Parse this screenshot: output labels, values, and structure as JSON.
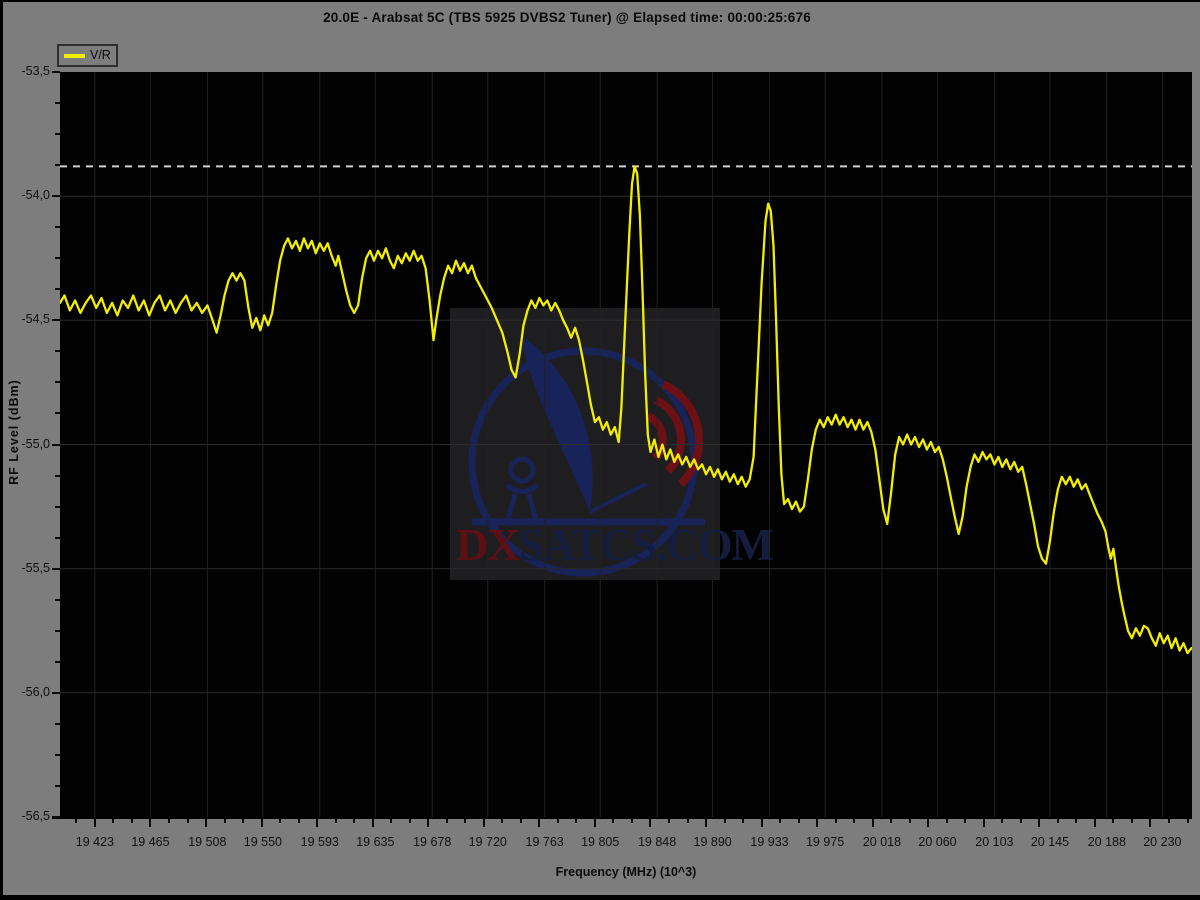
{
  "window": {
    "title": "20.0E - Arabsat 5C (TBS 5925 DVBS2 Tuner) @ Elapsed time: 00:00:25:676"
  },
  "legend": {
    "series_label": "V/R"
  },
  "axes": {
    "x_title": "Frequency (MHz) (10^3)",
    "y_title": "RF Level (dBm)"
  },
  "watermark": {
    "text_red": "DX",
    "text_navy": "SATCS.COM"
  },
  "colors": {
    "page_bg": "#7d7d7d",
    "plot_bg": "#020202",
    "trace": "#f2ee00",
    "reference_line": "#d2d2d2",
    "grid_vertical": "#212121",
    "grid_horizontal": "#2b2b2b",
    "watermark_patch": "#1e1e21",
    "watermark_navy": "#18235a",
    "watermark_red": "#6d1015",
    "watermark_text_red": "#5c1013",
    "watermark_text_navy": "#141d3e",
    "tick_color": "#0a0a0a"
  },
  "chart_data": {
    "type": "line",
    "title": "20.0E - Arabsat 5C (TBS 5925 DVBS2 Tuner) @ Elapsed time: 00:00:25:676",
    "xlabel": "Frequency (MHz) (10^3)",
    "ylabel": "RF Level (dBm)",
    "x_ticks": [
      "19 423",
      "19 465",
      "19 508",
      "19 550",
      "19 593",
      "19 635",
      "19 678",
      "19 720",
      "19 763",
      "19 805",
      "19 848",
      "19 890",
      "19 933",
      "19 975",
      "20 018",
      "20 060",
      "20 103",
      "20 145",
      "20 188",
      "20 230"
    ],
    "y_ticks": [
      "-53,5",
      "-54,0",
      "-54,5",
      "-55,0",
      "-55,5",
      "-56,0",
      "-56,5"
    ],
    "x_range": [
      19396.6,
      20252.4
    ],
    "y_range": [
      -56.5,
      -53.5
    ],
    "grid": true,
    "legend_position": "top-left",
    "reference_line_dBm": -53.88,
    "series": [
      {
        "name": "V/R",
        "color": "#f2ee00",
        "points": [
          [
            19396,
            -54.43
          ],
          [
            19400,
            -54.4
          ],
          [
            19404,
            -54.46
          ],
          [
            19408,
            -54.42
          ],
          [
            19412,
            -54.47
          ],
          [
            19416,
            -54.43
          ],
          [
            19420,
            -54.4
          ],
          [
            19424,
            -54.45
          ],
          [
            19428,
            -54.41
          ],
          [
            19432,
            -54.47
          ],
          [
            19436,
            -54.43
          ],
          [
            19440,
            -54.48
          ],
          [
            19444,
            -54.42
          ],
          [
            19448,
            -54.45
          ],
          [
            19452,
            -54.4
          ],
          [
            19456,
            -54.46
          ],
          [
            19460,
            -54.42
          ],
          [
            19464,
            -54.48
          ],
          [
            19468,
            -54.43
          ],
          [
            19472,
            -54.4
          ],
          [
            19476,
            -54.46
          ],
          [
            19480,
            -54.42
          ],
          [
            19484,
            -54.47
          ],
          [
            19488,
            -54.43
          ],
          [
            19492,
            -54.4
          ],
          [
            19496,
            -54.46
          ],
          [
            19500,
            -54.43
          ],
          [
            19504,
            -54.47
          ],
          [
            19508,
            -54.44
          ],
          [
            19512,
            -54.5
          ],
          [
            19515,
            -54.55
          ],
          [
            19518,
            -54.48
          ],
          [
            19521,
            -54.4
          ],
          [
            19524,
            -54.34
          ],
          [
            19527,
            -54.31
          ],
          [
            19530,
            -54.34
          ],
          [
            19533,
            -54.31
          ],
          [
            19536,
            -54.34
          ],
          [
            19539,
            -54.45
          ],
          [
            19542,
            -54.53
          ],
          [
            19545,
            -54.49
          ],
          [
            19548,
            -54.54
          ],
          [
            19551,
            -54.48
          ],
          [
            19554,
            -54.52
          ],
          [
            19557,
            -54.47
          ],
          [
            19560,
            -54.36
          ],
          [
            19563,
            -54.26
          ],
          [
            19566,
            -54.2
          ],
          [
            19569,
            -54.17
          ],
          [
            19572,
            -54.21
          ],
          [
            19575,
            -54.18
          ],
          [
            19578,
            -54.22
          ],
          [
            19581,
            -54.17
          ],
          [
            19584,
            -54.21
          ],
          [
            19587,
            -54.18
          ],
          [
            19590,
            -54.23
          ],
          [
            19593,
            -54.19
          ],
          [
            19596,
            -54.22
          ],
          [
            19599,
            -54.19
          ],
          [
            19602,
            -54.24
          ],
          [
            19605,
            -54.28
          ],
          [
            19607,
            -54.24
          ],
          [
            19610,
            -54.31
          ],
          [
            19613,
            -54.38
          ],
          [
            19616,
            -54.44
          ],
          [
            19619,
            -54.47
          ],
          [
            19622,
            -54.44
          ],
          [
            19625,
            -54.33
          ],
          [
            19628,
            -54.25
          ],
          [
            19631,
            -54.22
          ],
          [
            19634,
            -54.26
          ],
          [
            19637,
            -54.22
          ],
          [
            19640,
            -54.25
          ],
          [
            19643,
            -54.21
          ],
          [
            19646,
            -54.26
          ],
          [
            19649,
            -54.29
          ],
          [
            19652,
            -54.24
          ],
          [
            19655,
            -54.27
          ],
          [
            19658,
            -54.23
          ],
          [
            19661,
            -54.26
          ],
          [
            19664,
            -54.22
          ],
          [
            19667,
            -54.26
          ],
          [
            19670,
            -54.24
          ],
          [
            19673,
            -54.29
          ],
          [
            19676,
            -54.42
          ],
          [
            19679,
            -54.58
          ],
          [
            19681,
            -54.5
          ],
          [
            19684,
            -54.4
          ],
          [
            19687,
            -54.33
          ],
          [
            19690,
            -54.28
          ],
          [
            19693,
            -54.31
          ],
          [
            19696,
            -54.26
          ],
          [
            19699,
            -54.3
          ],
          [
            19702,
            -54.27
          ],
          [
            19705,
            -54.31
          ],
          [
            19708,
            -54.28
          ],
          [
            19711,
            -54.33
          ],
          [
            19715,
            -54.37
          ],
          [
            19719,
            -54.41
          ],
          [
            19723,
            -54.45
          ],
          [
            19727,
            -54.5
          ],
          [
            19731,
            -54.55
          ],
          [
            19735,
            -54.63
          ],
          [
            19738,
            -54.7
          ],
          [
            19741,
            -54.73
          ],
          [
            19744,
            -54.64
          ],
          [
            19747,
            -54.52
          ],
          [
            19750,
            -54.46
          ],
          [
            19753,
            -54.42
          ],
          [
            19756,
            -54.45
          ],
          [
            19759,
            -54.41
          ],
          [
            19762,
            -54.44
          ],
          [
            19765,
            -54.42
          ],
          [
            19768,
            -54.46
          ],
          [
            19771,
            -54.43
          ],
          [
            19774,
            -54.46
          ],
          [
            19777,
            -54.5
          ],
          [
            19780,
            -54.53
          ],
          [
            19783,
            -54.57
          ],
          [
            19786,
            -54.53
          ],
          [
            19789,
            -54.58
          ],
          [
            19792,
            -54.66
          ],
          [
            19795,
            -54.75
          ],
          [
            19798,
            -54.84
          ],
          [
            19801,
            -54.91
          ],
          [
            19804,
            -54.89
          ],
          [
            19807,
            -54.94
          ],
          [
            19810,
            -54.91
          ],
          [
            19813,
            -54.96
          ],
          [
            19816,
            -54.93
          ],
          [
            19819,
            -54.99
          ],
          [
            19821,
            -54.85
          ],
          [
            19824,
            -54.5
          ],
          [
            19827,
            -54.15
          ],
          [
            19829,
            -53.95
          ],
          [
            19831,
            -53.88
          ],
          [
            19833,
            -53.91
          ],
          [
            19835,
            -54.08
          ],
          [
            19837,
            -54.38
          ],
          [
            19839,
            -54.72
          ],
          [
            19841,
            -54.96
          ],
          [
            19843,
            -55.03
          ],
          [
            19846,
            -54.98
          ],
          [
            19849,
            -55.05
          ],
          [
            19852,
            -55.0
          ],
          [
            19855,
            -55.06
          ],
          [
            19858,
            -55.02
          ],
          [
            19861,
            -55.07
          ],
          [
            19864,
            -55.04
          ],
          [
            19867,
            -55.08
          ],
          [
            19870,
            -55.05
          ],
          [
            19873,
            -55.09
          ],
          [
            19876,
            -55.06
          ],
          [
            19879,
            -55.1
          ],
          [
            19882,
            -55.08
          ],
          [
            19885,
            -55.12
          ],
          [
            19888,
            -55.09
          ],
          [
            19891,
            -55.13
          ],
          [
            19894,
            -55.1
          ],
          [
            19897,
            -55.14
          ],
          [
            19900,
            -55.11
          ],
          [
            19903,
            -55.15
          ],
          [
            19906,
            -55.12
          ],
          [
            19909,
            -55.16
          ],
          [
            19912,
            -55.13
          ],
          [
            19915,
            -55.17
          ],
          [
            19918,
            -55.14
          ],
          [
            19921,
            -55.05
          ],
          [
            19924,
            -54.7
          ],
          [
            19927,
            -54.35
          ],
          [
            19930,
            -54.1
          ],
          [
            19932,
            -54.03
          ],
          [
            19934,
            -54.06
          ],
          [
            19936,
            -54.2
          ],
          [
            19938,
            -54.5
          ],
          [
            19940,
            -54.85
          ],
          [
            19942,
            -55.12
          ],
          [
            19944,
            -55.24
          ],
          [
            19947,
            -55.22
          ],
          [
            19950,
            -55.26
          ],
          [
            19953,
            -55.23
          ],
          [
            19956,
            -55.27
          ],
          [
            19959,
            -55.25
          ],
          [
            19962,
            -55.14
          ],
          [
            19965,
            -55.02
          ],
          [
            19968,
            -54.94
          ],
          [
            19971,
            -54.9
          ],
          [
            19974,
            -54.93
          ],
          [
            19977,
            -54.89
          ],
          [
            19980,
            -54.92
          ],
          [
            19983,
            -54.88
          ],
          [
            19986,
            -54.92
          ],
          [
            19989,
            -54.89
          ],
          [
            19992,
            -54.93
          ],
          [
            19995,
            -54.9
          ],
          [
            19998,
            -54.94
          ],
          [
            20001,
            -54.9
          ],
          [
            20004,
            -54.94
          ],
          [
            20007,
            -54.91
          ],
          [
            20010,
            -54.95
          ],
          [
            20013,
            -55.02
          ],
          [
            20016,
            -55.14
          ],
          [
            20019,
            -55.26
          ],
          [
            20022,
            -55.32
          ],
          [
            20025,
            -55.19
          ],
          [
            20028,
            -55.04
          ],
          [
            20031,
            -54.97
          ],
          [
            20034,
            -55.0
          ],
          [
            20037,
            -54.96
          ],
          [
            20040,
            -55.0
          ],
          [
            20043,
            -54.97
          ],
          [
            20046,
            -55.01
          ],
          [
            20049,
            -54.98
          ],
          [
            20052,
            -55.02
          ],
          [
            20055,
            -54.99
          ],
          [
            20058,
            -55.03
          ],
          [
            20061,
            -55.01
          ],
          [
            20064,
            -55.06
          ],
          [
            20067,
            -55.13
          ],
          [
            20070,
            -55.21
          ],
          [
            20073,
            -55.29
          ],
          [
            20076,
            -55.36
          ],
          [
            20079,
            -55.29
          ],
          [
            20082,
            -55.17
          ],
          [
            20085,
            -55.09
          ],
          [
            20088,
            -55.04
          ],
          [
            20091,
            -55.07
          ],
          [
            20094,
            -55.03
          ],
          [
            20097,
            -55.06
          ],
          [
            20100,
            -55.04
          ],
          [
            20103,
            -55.08
          ],
          [
            20106,
            -55.05
          ],
          [
            20109,
            -55.09
          ],
          [
            20112,
            -55.06
          ],
          [
            20115,
            -55.1
          ],
          [
            20118,
            -55.07
          ],
          [
            20121,
            -55.11
          ],
          [
            20124,
            -55.09
          ],
          [
            20127,
            -55.16
          ],
          [
            20130,
            -55.24
          ],
          [
            20133,
            -55.32
          ],
          [
            20136,
            -55.41
          ],
          [
            20139,
            -55.46
          ],
          [
            20142,
            -55.48
          ],
          [
            20145,
            -55.39
          ],
          [
            20148,
            -55.27
          ],
          [
            20151,
            -55.18
          ],
          [
            20154,
            -55.13
          ],
          [
            20157,
            -55.16
          ],
          [
            20160,
            -55.13
          ],
          [
            20163,
            -55.17
          ],
          [
            20166,
            -55.14
          ],
          [
            20169,
            -55.18
          ],
          [
            20172,
            -55.16
          ],
          [
            20175,
            -55.2
          ],
          [
            20178,
            -55.24
          ],
          [
            20181,
            -55.28
          ],
          [
            20184,
            -55.31
          ],
          [
            20187,
            -55.35
          ],
          [
            20189,
            -55.41
          ],
          [
            20191,
            -55.46
          ],
          [
            20193,
            -55.42
          ],
          [
            20195,
            -55.5
          ],
          [
            20197,
            -55.57
          ],
          [
            20199,
            -55.63
          ],
          [
            20201,
            -55.68
          ],
          [
            20204,
            -55.75
          ],
          [
            20207,
            -55.78
          ],
          [
            20210,
            -55.74
          ],
          [
            20213,
            -55.77
          ],
          [
            20216,
            -55.73
          ],
          [
            20219,
            -55.74
          ],
          [
            20222,
            -55.78
          ],
          [
            20225,
            -55.81
          ],
          [
            20228,
            -55.76
          ],
          [
            20231,
            -55.8
          ],
          [
            20234,
            -55.77
          ],
          [
            20237,
            -55.82
          ],
          [
            20240,
            -55.78
          ],
          [
            20243,
            -55.83
          ],
          [
            20246,
            -55.8
          ],
          [
            20249,
            -55.84
          ],
          [
            20252,
            -55.82
          ]
        ]
      }
    ]
  }
}
